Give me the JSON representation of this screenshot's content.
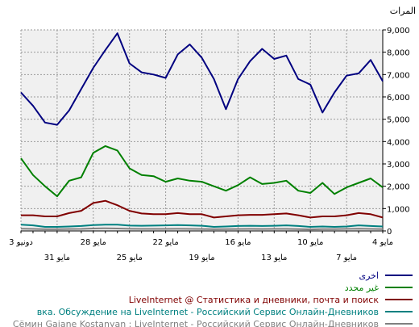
{
  "chart_data": {
    "type": "line",
    "ylabel": "المرات",
    "ylim": [
      0,
      9000
    ],
    "yticks": [
      "0",
      "1,000",
      "2,000",
      "3,000",
      "4,000",
      "5,000",
      "6,000",
      "7,000",
      "8,000",
      "9,000"
    ],
    "grid": true,
    "legend_position": "bottom-right",
    "x_ticks_row1": [
      "4 مايو",
      "7 مايو",
      "10 مايو",
      "13 مايو",
      "16 مايو",
      "19 مايو",
      "22 مايو",
      "25 مايو",
      "28 مايو",
      "31 مايو",
      "3 دونيو"
    ],
    "x_ticks_row2": [
      "7 مايو",
      "13 مايو",
      "19 مايو",
      "25 مايو",
      "31 مايو"
    ],
    "x_ticks_row1_values": [
      0,
      3,
      6,
      9,
      12,
      15,
      18,
      21,
      24,
      27,
      30
    ],
    "x_ticks_row2_values": [
      3,
      9,
      15,
      21,
      27
    ],
    "x_tick_values": [
      0,
      3,
      6,
      9,
      12,
      15,
      18,
      21,
      24,
      27,
      30
    ],
    "x_tick_row1_labels": [
      "4 مايو",
      "10 مايو",
      "16 مايو",
      "22 مايو",
      "28 مايو",
      "3 دونيو"
    ],
    "x_tick_row1_at": [
      0,
      6,
      12,
      18,
      24,
      30
    ],
    "x_tick_row2_labels": [
      "7 مايو",
      "13 مايو",
      "19 مايو",
      "25 مايو",
      "31 مايو"
    ],
    "x_tick_row2_at": [
      3,
      9,
      15,
      21,
      27
    ],
    "x_count": 31,
    "series": [
      {
        "name": "اخرى",
        "color": "#000080",
        "values": [
          6700,
          7650,
          7050,
          6950,
          6200,
          5300,
          6550,
          6800,
          7850,
          7700,
          8150,
          7600,
          6800,
          5450,
          6800,
          7750,
          8350,
          7900,
          6850,
          7000,
          7100,
          7500,
          8850,
          8100,
          7300,
          6350,
          5400,
          4750,
          4850,
          5600,
          6200
        ]
      },
      {
        "name": "غير محدد",
        "color": "#008000",
        "values": [
          1950,
          2350,
          2150,
          1950,
          1650,
          2150,
          1700,
          1800,
          2250,
          2150,
          2100,
          2400,
          2050,
          1800,
          2000,
          2200,
          2250,
          2350,
          2200,
          2450,
          2500,
          2800,
          3600,
          3800,
          3500,
          2400,
          2250,
          1550,
          2000,
          2500,
          3250
        ]
      },
      {
        "name": "LiveInternet @ Статистика и дневники, почта и поиск",
        "color": "#800000",
        "values": [
          600,
          750,
          800,
          700,
          650,
          650,
          600,
          700,
          780,
          750,
          720,
          720,
          700,
          650,
          600,
          750,
          750,
          800,
          750,
          750,
          780,
          900,
          1150,
          1350,
          1250,
          900,
          800,
          650,
          650,
          700,
          700
        ]
      },
      {
        "name": "вка. Обсуждение на LiveInternet - Российский Сервис Онлайн-Дневников",
        "color": "#008080",
        "values": [
          200,
          220,
          250,
          200,
          180,
          200,
          180,
          220,
          250,
          230,
          220,
          230,
          220,
          200,
          180,
          230,
          250,
          260,
          250,
          240,
          230,
          240,
          280,
          280,
          260,
          220,
          200,
          180,
          180,
          250,
          280
        ]
      },
      {
        "name": "Сёмин Gaiane Kostanyan : LiveInternet - Российский Сервис Онлайн-Дневников",
        "color": "#808080",
        "values": [
          80,
          90,
          100,
          90,
          80,
          80,
          70,
          80,
          90,
          90,
          85,
          90,
          85,
          80,
          75,
          85,
          90,
          95,
          90,
          90,
          90,
          95,
          110,
          120,
          110,
          90,
          85,
          75,
          75,
          90,
          100
        ]
      }
    ]
  }
}
